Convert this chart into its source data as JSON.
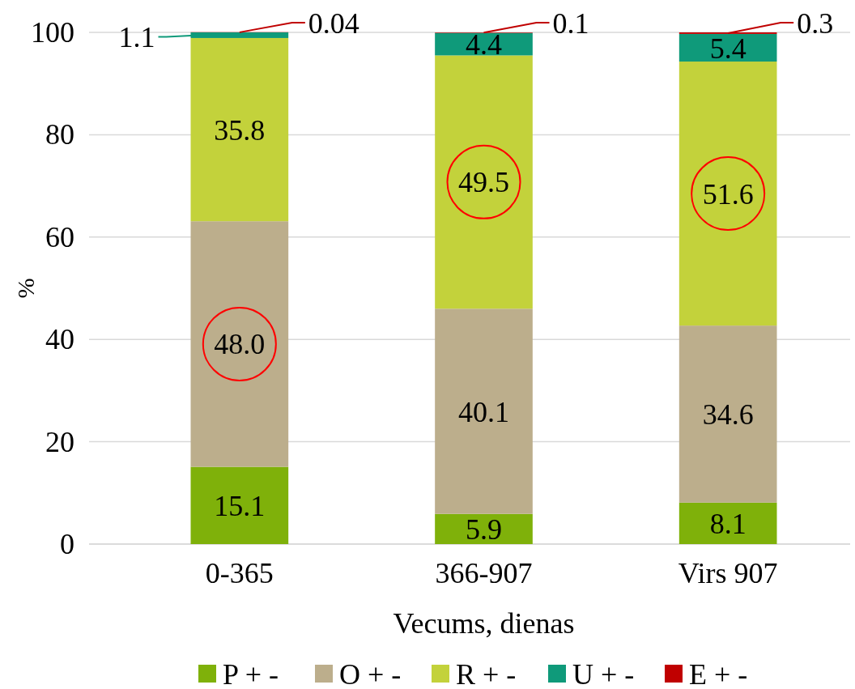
{
  "chart_data": {
    "type": "bar",
    "stacked": true,
    "xlabel": "Vecums, dienas",
    "ylabel": "%",
    "categories": [
      "0-365",
      "366-907",
      "Virs 907"
    ],
    "series": [
      {
        "name": "P + -",
        "color": "#7fb10a",
        "values": [
          15.1,
          5.9,
          8.1
        ],
        "value_labels": [
          "15.1",
          "5.9",
          "8.1"
        ]
      },
      {
        "name": "O + -",
        "color": "#bcae8c",
        "values": [
          48.0,
          40.1,
          34.6
        ],
        "value_labels": [
          "48.0",
          "40.1",
          "34.6"
        ]
      },
      {
        "name": "R + -",
        "color": "#c3d23b",
        "values": [
          35.8,
          49.5,
          51.6
        ],
        "value_labels": [
          "35.8",
          "49.5",
          "51.6"
        ]
      },
      {
        "name": "U + -",
        "color": "#0f9a7a",
        "values": [
          1.1,
          4.4,
          5.4
        ],
        "value_labels": [
          "1.1",
          "4.4",
          "5.4"
        ]
      },
      {
        "name": "E + -",
        "color": "#c00000",
        "values": [
          0.04,
          0.1,
          0.3
        ],
        "value_labels": [
          "0.04",
          "0.1",
          "0.3"
        ]
      }
    ],
    "ylim": [
      0,
      100
    ],
    "yticks": [
      0,
      20,
      40,
      60,
      80,
      100
    ],
    "grid": "y",
    "legend": "bottom"
  }
}
